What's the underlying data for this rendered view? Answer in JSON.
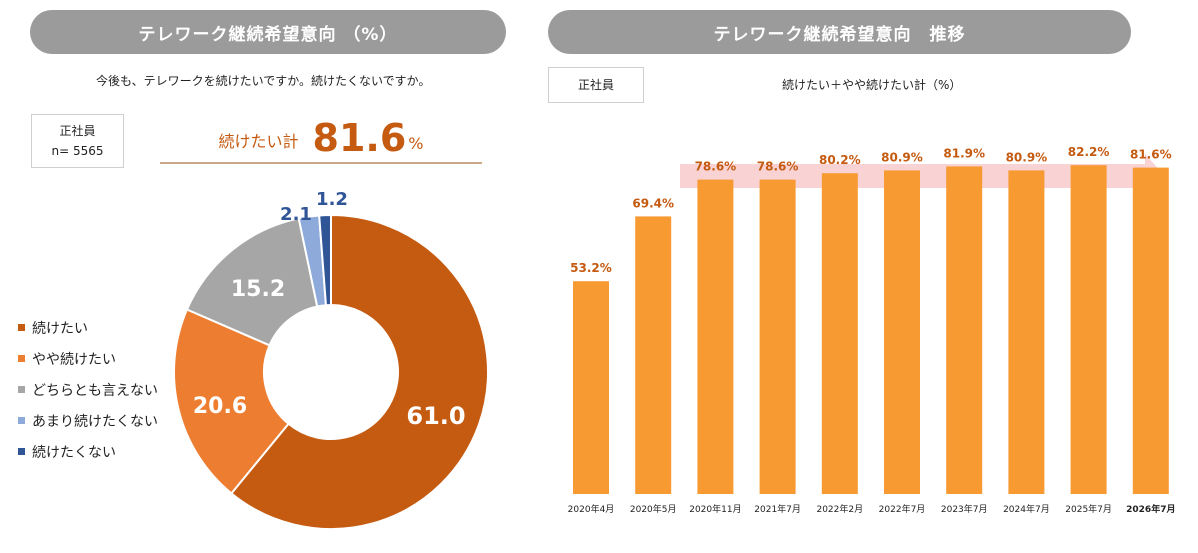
{
  "left_panel": {
    "title": "テレワーク継続希望意向 （%）",
    "question": "今後も、テレワークを続けたいですか。続けたくないですか。",
    "sample_label": "正社員",
    "sample_size": "n= 5565",
    "total_label": "続けたい計",
    "total_value": "81.6",
    "total_unit": "%"
  },
  "right_panel": {
    "title": "テレワーク継続希望意向　推移",
    "segment_label": "正社員",
    "metric_label": "続けたい＋やや続けたい計（%）"
  },
  "colors": {
    "continue": "#c55a11",
    "somewhat_continue": "#ed7d31",
    "neither": "#a6a6a6",
    "not_really": "#8eaadb",
    "not_continue": "#2f5597",
    "bar": "#f79a32",
    "bar_label": "#c55a11",
    "arrow": "#f9d2d3"
  },
  "chart_data": [
    {
      "type": "pie",
      "donut": true,
      "categories": [
        "続けたい",
        "やや続けたい",
        "どちらとも言えない",
        "あまり続けたくない",
        "続けたくない"
      ],
      "values": [
        61.0,
        20.6,
        15.2,
        2.1,
        1.2
      ],
      "labels": [
        "61.0",
        "20.6",
        "15.2",
        "2.1",
        "1.2"
      ],
      "legend": "left"
    },
    {
      "type": "bar",
      "categories": [
        "2020年4月",
        "2020年5月",
        "2020年11月",
        "2021年7月",
        "2022年2月",
        "2022年7月",
        "2023年7月",
        "2024年7月",
        "2025年7月",
        "2026年7月"
      ],
      "values": [
        53.2,
        69.4,
        78.6,
        78.6,
        80.2,
        80.9,
        81.9,
        80.9,
        82.2,
        81.6
      ],
      "labels": [
        "53.2%",
        "69.4%",
        "78.6%",
        "78.6%",
        "80.2%",
        "80.9%",
        "81.9%",
        "80.9%",
        "82.2%",
        "81.6%"
      ],
      "highlight_last_category": true
    }
  ]
}
